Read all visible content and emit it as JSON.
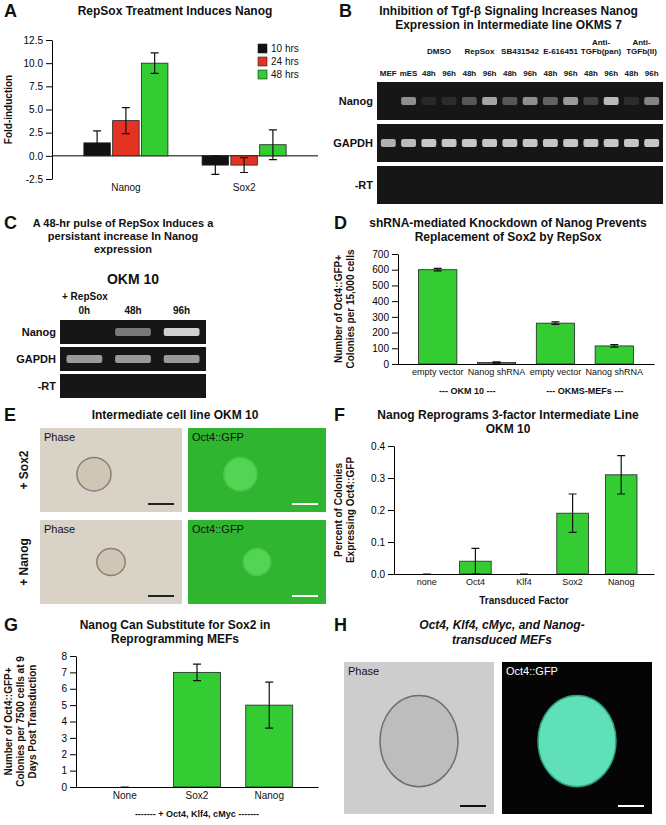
{
  "chart_data": [
    {
      "type": "bar",
      "panel": "A",
      "title": "RepSox Treatment Induces Nanog",
      "ylabel": "Fold-induction",
      "categories": [
        "Nanog",
        "Sox2"
      ],
      "series": [
        {
          "name": "10 hrs",
          "color": "#111111",
          "values": [
            1.4,
            -1.0
          ],
          "errors": [
            1.3,
            1.0
          ]
        },
        {
          "name": "24 hrs",
          "color": "#e53323",
          "values": [
            3.8,
            -1.0
          ],
          "errors": [
            1.4,
            0.8
          ]
        },
        {
          "name": "48 hrs",
          "color": "#33cc33",
          "values": [
            10.0,
            1.2
          ],
          "errors": [
            1.1,
            1.6
          ]
        }
      ],
      "ylim": [
        -2.5,
        12.5
      ],
      "yticks": [
        -2.5,
        {
          "value": 0,
          "label": "0.0"
        },
        2.5,
        {
          "value": 5,
          "label": "5.0"
        },
        7.5,
        {
          "value": 10,
          "label": "10.0"
        },
        12.5
      ],
      "legend": "upper right"
    },
    {
      "type": "bar",
      "panel": "D",
      "title": "shRNA-mediated Knockdown of Nanog Prevents Replacement of Sox2 by RepSox",
      "ylabel": "Number of Oct4::GFP+ Colonies per 15,000 cells",
      "categories": [
        "empty vector",
        "Nanog shRNA",
        "empty vector",
        "Nanog shRNA"
      ],
      "values": [
        600,
        10,
        260,
        115
      ],
      "errors": [
        8,
        4,
        8,
        8
      ],
      "color": "#33cc33",
      "ylim": [
        0,
        700
      ],
      "yticks": [
        0,
        100,
        200,
        300,
        400,
        500,
        600,
        700
      ],
      "annotations": [
        "--- OKM 10 ---",
        "--- OKMS-MEFs ---"
      ]
    },
    {
      "type": "bar",
      "panel": "F",
      "title": "Nanog Reprograms 3-factor Intermediate Line OKM 10",
      "ylabel": "Percent of Colonies Expressing Oct4::GFP",
      "xlabel": "Transduced Factor",
      "categories": [
        "none",
        "Oct4",
        "Klf4",
        "Sox2",
        "Nanog"
      ],
      "values": [
        0,
        0.04,
        0,
        0.19,
        0.31
      ],
      "errors": [
        0,
        0.04,
        0,
        0.06,
        0.06
      ],
      "color": "#33cc33",
      "ylim": [
        0,
        0.4
      ],
      "yticks": [
        {
          "value": 0,
          "label": "0.0"
        },
        0.1,
        0.2,
        0.3,
        0.4
      ]
    },
    {
      "type": "bar",
      "panel": "G",
      "title": "Nanog Can Substitute for Sox2 in Reprogramming MEFs",
      "ylabel": "Number of Oct4::GFP+ Colonies per 7500 cells at 9 Days Post Transduction",
      "categories": [
        "None",
        "Sox2",
        "Nanog"
      ],
      "values": [
        0,
        7,
        5
      ],
      "errors": [
        0,
        0.5,
        1.4
      ],
      "color": "#33cc33",
      "ylim": [
        0,
        8
      ],
      "yticks": [
        0,
        1,
        2,
        3,
        4,
        5,
        6,
        7,
        8
      ],
      "annotations": [
        "------- + Oct4, Klf4, cMyc -------"
      ]
    }
  ],
  "gels": [
    {
      "panel": "B",
      "title": "Inhibition of Tgf-β Signaling Increases Nanog Expression in Intermediate line OKMS 7",
      "columns": [
        {
          "name": "MEF"
        },
        {
          "name": "mES"
        },
        {
          "name": "DMSO",
          "lanes": [
            "48h",
            "96h"
          ]
        },
        {
          "name": "RepSox",
          "lanes": [
            "48h",
            "96h"
          ]
        },
        {
          "name": "SB431542",
          "lanes": [
            "48h",
            "96h"
          ]
        },
        {
          "name": "E-616451",
          "lanes": [
            "48h",
            "96h"
          ]
        },
        {
          "name": "Anti-TGFb(pan)",
          "lanes": [
            "48h",
            "96h"
          ]
        },
        {
          "name": "Anti-TGFb(II)",
          "lanes": [
            "48h",
            "96h"
          ]
        }
      ],
      "rows": [
        {
          "name": "Nanog",
          "bands": [
            0,
            0.55,
            0.08,
            0.1,
            0.3,
            0.65,
            0.3,
            0.55,
            0.35,
            0.6,
            0.2,
            0.75,
            0.1,
            0.5
          ]
        },
        {
          "name": "GAPDH",
          "bands": [
            0.7,
            0.75,
            0.8,
            0.8,
            0.8,
            0.8,
            0.8,
            0.8,
            0.8,
            0.8,
            0.8,
            0.8,
            0.8,
            0.8
          ]
        },
        {
          "name": "-RT",
          "bands": [
            0,
            0,
            0,
            0,
            0,
            0,
            0,
            0,
            0,
            0,
            0,
            0,
            0,
            0
          ]
        }
      ]
    },
    {
      "panel": "C",
      "title": "A 48-hr pulse of RepSox Induces a persistant increase In Nanog expression",
      "header": "OKM 10",
      "treatment": "+ RepSox",
      "columns": [
        {
          "name": "0h"
        },
        {
          "name": "48h"
        },
        {
          "name": "96h"
        }
      ],
      "rows": [
        {
          "name": "Nanog",
          "bands": [
            0,
            0.45,
            0.85
          ]
        },
        {
          "name": "GAPDH",
          "bands": [
            0.6,
            0.6,
            0.6
          ]
        },
        {
          "name": "-RT",
          "bands": [
            0,
            0,
            0
          ]
        }
      ]
    }
  ],
  "micrographs": [
    {
      "panel": "E",
      "title": "Intermediate cell line OKM 10",
      "columns": [
        "Phase",
        "Oct4::GFP"
      ],
      "rows": [
        "+ Sox2",
        "+ Nanog"
      ]
    },
    {
      "panel": "H",
      "title": "Oct4, Klf4, cMyc, and Nanog- transduced MEFs",
      "columns": [
        "Phase",
        "Oct4::GFP"
      ]
    }
  ]
}
